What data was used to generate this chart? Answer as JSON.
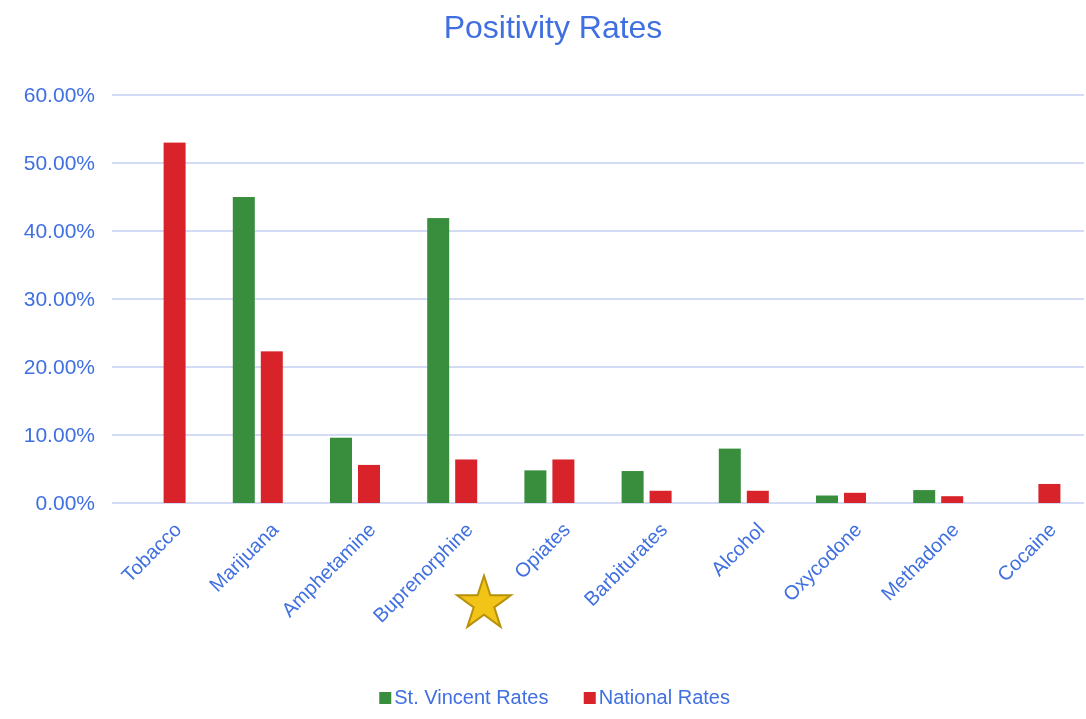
{
  "chart_data": {
    "type": "bar",
    "title": "Positivity Rates",
    "categories": [
      "Tobacco",
      "Marijuana",
      "Amphetamine",
      "Buprenorphine",
      "Opiates",
      "Barbiturates",
      "Alcohol",
      "Oxycodone",
      "Methadone",
      "Cocaine"
    ],
    "series": [
      {
        "name": "St. Vincent Rates",
        "color": "#388e3c",
        "values": [
          null,
          45.0,
          9.6,
          41.9,
          4.8,
          4.7,
          8.0,
          1.1,
          1.9,
          null
        ]
      },
      {
        "name": "National Rates",
        "color": "#d8232a",
        "values": [
          53.0,
          22.3,
          5.6,
          6.4,
          6.4,
          1.8,
          1.8,
          1.5,
          1.0,
          2.8
        ]
      }
    ],
    "ylim": [
      0,
      60
    ],
    "yticks": [
      {
        "value": 0,
        "label": "0.00%"
      },
      {
        "value": 10,
        "label": "10.00%"
      },
      {
        "value": 20,
        "label": "20.00%"
      },
      {
        "value": 30,
        "label": "30.00%"
      },
      {
        "value": 40,
        "label": "40.00%"
      },
      {
        "value": 50,
        "label": "50.00%"
      },
      {
        "value": 60,
        "label": "60.00%"
      }
    ],
    "grid": "y",
    "legend": "bottom"
  }
}
